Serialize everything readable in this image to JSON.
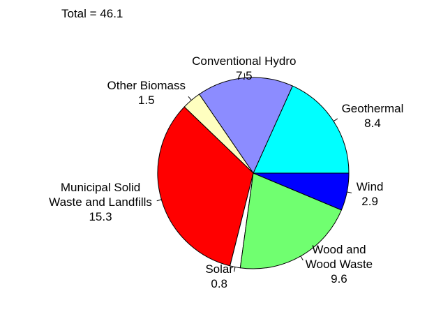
{
  "chart_data": {
    "type": "pie",
    "title": "Total = 46.1",
    "categories": [
      "Geothermal",
      "Conventional Hydro",
      "Other Biomass",
      "Municipal Solid\nWaste and Landfills",
      "Solar",
      "Wood and\nWood Waste",
      "Wind"
    ],
    "values": [
      8.4,
      7.5,
      1.5,
      15.3,
      0.8,
      9.6,
      2.9
    ],
    "colors": [
      "#00ffff",
      "#8c8cff",
      "#ffffc0",
      "#ff0000",
      "#ffffff",
      "#70ff70",
      "#0000ff"
    ]
  }
}
